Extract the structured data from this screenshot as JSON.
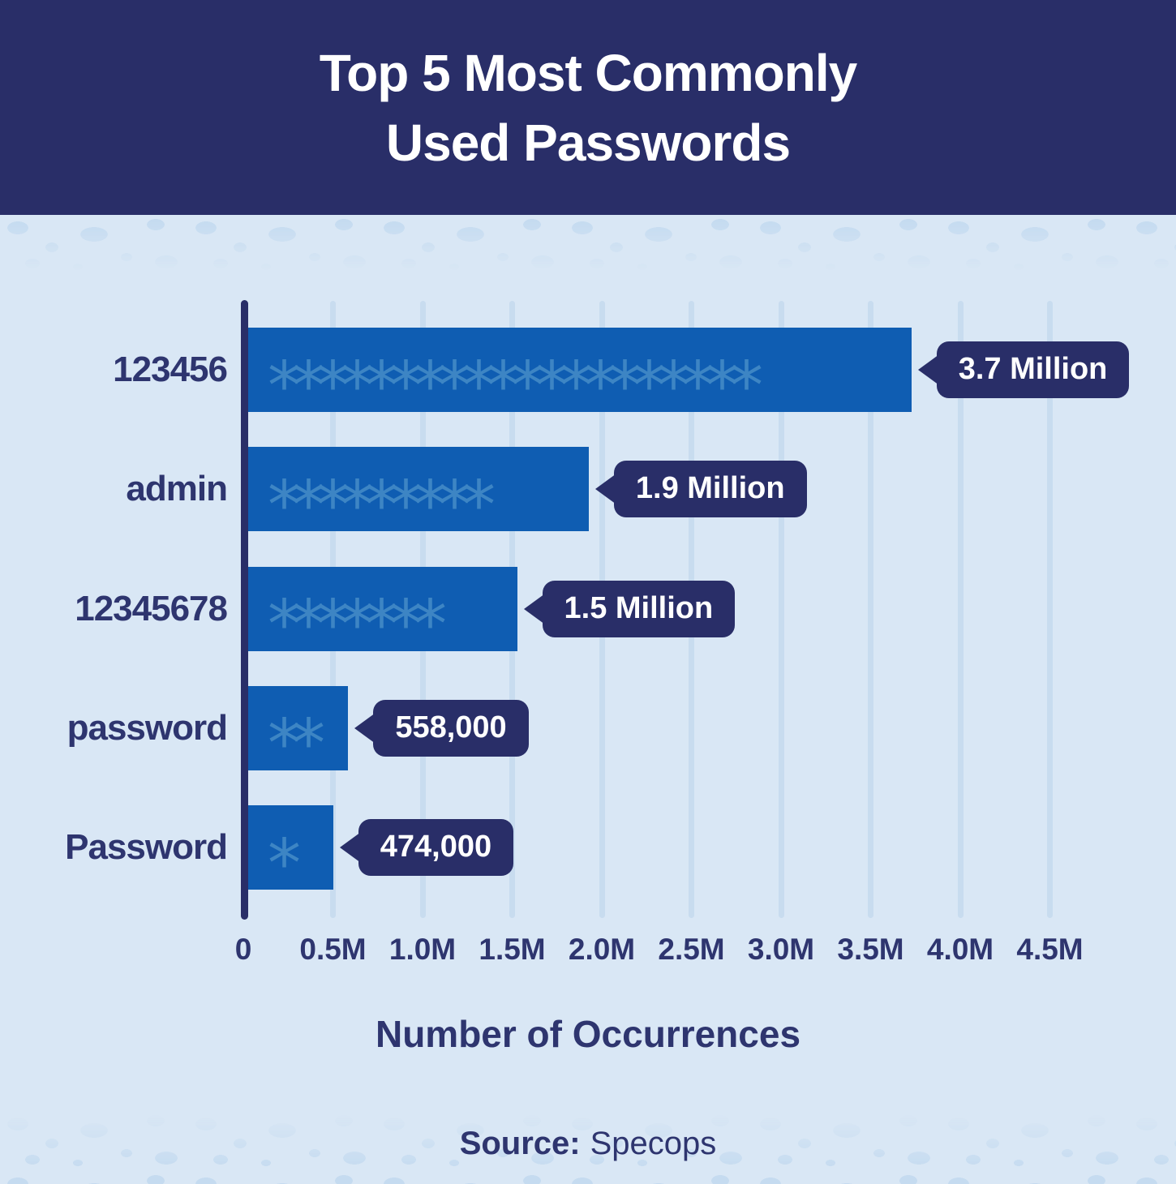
{
  "colors": {
    "navy": "#292e68",
    "text_navy": "#2e356f",
    "bar_blue": "#0f5db2",
    "asterisk_blue": "#3d85c4",
    "bg_light": "#d9e7f5",
    "gridline": "#c8dcef",
    "speckle": "#c5dbf0",
    "white": "#ffffff"
  },
  "header": {
    "title_line1": "Top 5 Most Commonly",
    "title_line2": "Used Passwords"
  },
  "chart_data": {
    "type": "bar",
    "orientation": "horizontal",
    "title": "Top 5 Most Commonly Used Passwords",
    "categories": [
      "123456",
      "admin",
      "12345678",
      "password",
      "Password"
    ],
    "values": [
      3700000,
      1900000,
      1500000,
      558000,
      474000
    ],
    "value_labels": [
      "3.7 Million",
      "1.9 Million",
      "1.5 Million",
      "558,000",
      "474,000"
    ],
    "bar_masks": [
      "********************",
      "*********",
      "*******",
      "**",
      "*"
    ],
    "xlabel": "Number of Occurrences",
    "ylabel": "",
    "x_tick_labels": [
      "0",
      "0.5M",
      "1.0M",
      "1.5M",
      "2.0M",
      "2.5M",
      "3.0M",
      "3.5M",
      "4.0M",
      "4.5M"
    ],
    "x_tick_values": [
      0,
      500000,
      1000000,
      1500000,
      2000000,
      2500000,
      3000000,
      3500000,
      4000000,
      4500000
    ],
    "xlim": [
      0,
      4500000
    ],
    "grid": true,
    "legend_position": "none"
  },
  "source": {
    "label": "Source:",
    "value": "Specops"
  }
}
